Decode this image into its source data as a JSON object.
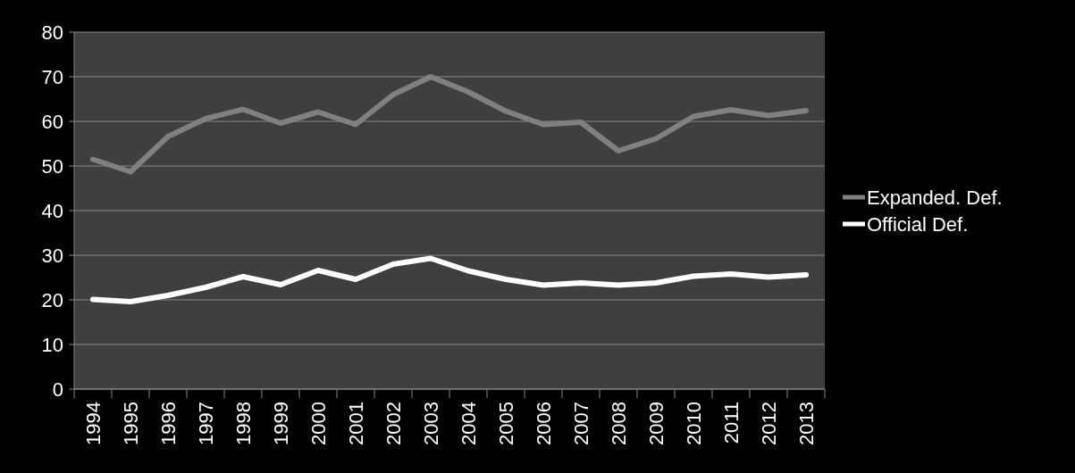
{
  "chart_data": {
    "type": "line",
    "categories": [
      "1994",
      "1995",
      "1996",
      "1997",
      "1998",
      "1999",
      "2000",
      "2001",
      "2002",
      "2003",
      "2004",
      "2005",
      "2006",
      "2007",
      "2008",
      "2009",
      "2010",
      "2011",
      "2012",
      "2013"
    ],
    "series": [
      {
        "name": "Expanded. Def.",
        "color": "#808080",
        "values": [
          51.5,
          48.7,
          56.6,
          60.6,
          62.7,
          59.6,
          62.1,
          59.3,
          66.0,
          70.0,
          66.6,
          62.3,
          59.3,
          59.8,
          53.4,
          56.1,
          61.1,
          62.6,
          61.3,
          62.4
        ]
      },
      {
        "name": "Official Def.",
        "color": "#ffffff",
        "values": [
          20.1,
          19.6,
          21.0,
          22.8,
          25.2,
          23.4,
          26.6,
          24.6,
          28.0,
          29.3,
          26.5,
          24.6,
          23.3,
          23.8,
          23.3,
          23.8,
          25.3,
          25.8,
          25.1,
          25.6
        ]
      }
    ],
    "ylim": [
      0,
      80
    ],
    "yticks": [
      0,
      10,
      20,
      30,
      40,
      50,
      60,
      70,
      80
    ],
    "grid": "y",
    "legend": "right",
    "marker": "none",
    "line_style": "solid"
  }
}
